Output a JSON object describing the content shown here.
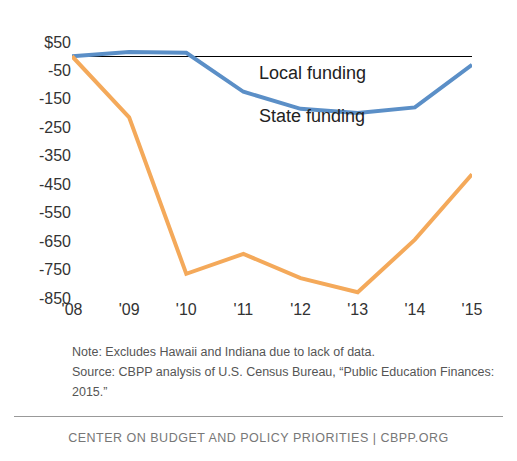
{
  "chart_data": {
    "type": "line",
    "categories": [
      "'08",
      "'09",
      "'10",
      "'11",
      "'12",
      "'13",
      "'14",
      "'15"
    ],
    "series": [
      {
        "name": "Local funding",
        "color": "#5b8fc7",
        "values": [
          0,
          15,
          12,
          -125,
          -185,
          -200,
          -180,
          -30
        ]
      },
      {
        "name": "State funding",
        "color": "#f4a95a",
        "values": [
          0,
          -215,
          -765,
          -695,
          -780,
          -830,
          -645,
          -415
        ]
      }
    ],
    "ylim": [
      -850,
      50
    ],
    "yticks": [
      {
        "value": 50,
        "label": "$50"
      },
      -50,
      -150,
      -250,
      -350,
      -450,
      -550,
      -650,
      -750,
      -850
    ],
    "grid": false
  },
  "note": "Note: Excludes Hawaii and Indiana due to lack of data.",
  "source": "Source: CBPP analysis of U.S. Census Bureau, “Public Education Finances: 2015.”",
  "footer": "CENTER ON BUDGET AND POLICY PRIORITIES | CBPP.ORG"
}
